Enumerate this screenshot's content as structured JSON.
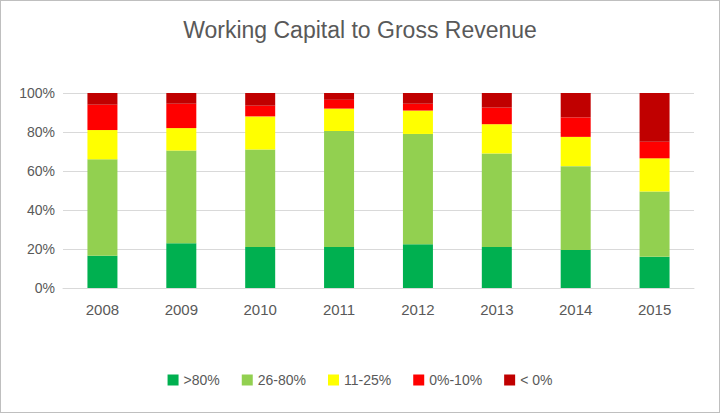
{
  "chart_data": {
    "type": "bar",
    "title": "Working Capital to Gross Revenue",
    "categories": [
      "2008",
      "2009",
      "2010",
      "2011",
      "2012",
      "2013",
      "2014",
      "2015"
    ],
    "series": [
      {
        "name": ">80%",
        "color": "#00b050",
        "values": [
          16.5,
          23,
          21,
          21,
          22.5,
          21,
          19.5,
          16
        ]
      },
      {
        "name": "26-80%",
        "color": "#92d050",
        "values": [
          49.5,
          47.5,
          50,
          59.5,
          56.5,
          48,
          43,
          33.5
        ]
      },
      {
        "name": "11-25%",
        "color": "#ffff00",
        "values": [
          15,
          11.5,
          17,
          11.5,
          12,
          15,
          15,
          17
        ]
      },
      {
        "name": "0%-10%",
        "color": "#ff0000",
        "values": [
          13,
          12.5,
          5.5,
          4.5,
          3.5,
          8.5,
          10,
          8.5
        ]
      },
      {
        "name": "< 0%",
        "color": "#c00000",
        "values": [
          6,
          5.5,
          6.5,
          3.5,
          5.5,
          7.5,
          12.5,
          25
        ]
      }
    ],
    "ylim": [
      0,
      100
    ],
    "yticks": [
      {
        "value": 0,
        "label": "0%"
      },
      {
        "value": 20,
        "label": "20%"
      },
      {
        "value": 40,
        "label": "40%"
      },
      {
        "value": 60,
        "label": "60%"
      },
      {
        "value": 80,
        "label": "80%"
      },
      {
        "value": 100,
        "label": "100%"
      }
    ],
    "stacked": true,
    "grid": true,
    "legend": "bottom"
  }
}
